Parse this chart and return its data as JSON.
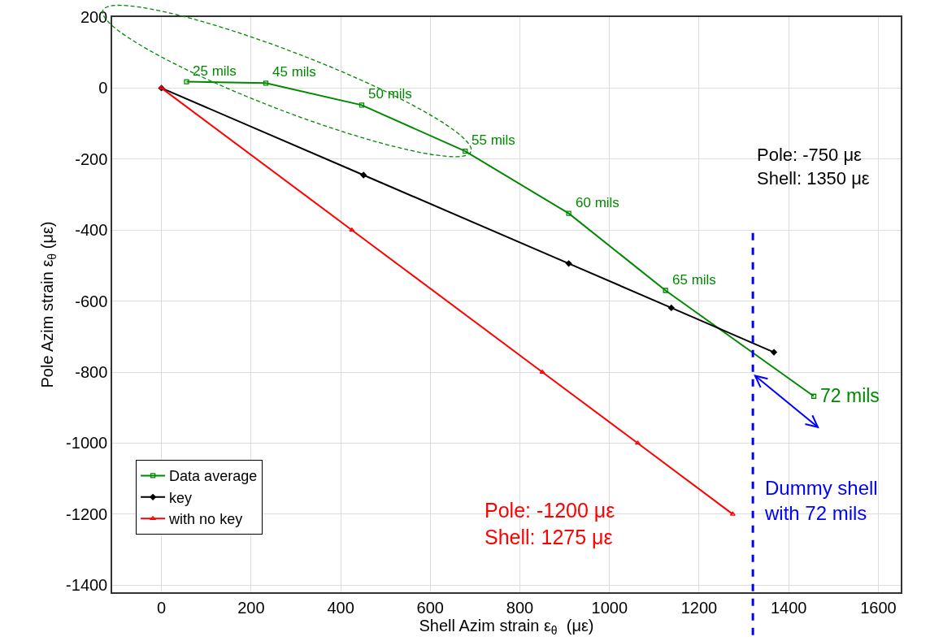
{
  "chart_data": {
    "type": "line",
    "xlabel": "Shell Azim strain ε$_{θ}$  (με)",
    "ylabel": "Pole Azim strain ε$_{θ}$ (με)",
    "xlim": [
      -110,
      1650
    ],
    "xticks": [
      0,
      200,
      400,
      600,
      800,
      1000,
      1200,
      1400,
      1600
    ],
    "ylim": [
      -1420,
      200
    ],
    "yticks": [
      200,
      0,
      -200,
      -400,
      -600,
      -800,
      -1000,
      -1200,
      -1400
    ],
    "grid": true,
    "legend": "bottom left",
    "line_style": "solid",
    "series": [
      {
        "name": "Data average",
        "color": "#008800",
        "marker": "square",
        "x": [
          56,
          233,
          447,
          678,
          909,
          1125,
          1456
        ],
        "values": [
          18,
          14,
          -48,
          -178,
          -353,
          -570,
          -868
        ]
      },
      {
        "name": "key",
        "color": "#000000",
        "marker": "diamond",
        "x": [
          0,
          451,
          909,
          1138,
          1367
        ],
        "values": [
          0,
          -245,
          -494,
          -619,
          -744
        ]
      },
      {
        "name": "with no key",
        "color": "#ff0000",
        "marker": "triangle",
        "x": [
          0,
          425,
          850,
          1063,
          1275
        ],
        "values": [
          0,
          -400,
          -800,
          -1000,
          -1200
        ]
      }
    ],
    "ref_lines": [
      {
        "axis": "x",
        "value": 1320,
        "label": "Dummy shell\nwith 72 mils",
        "color": "#0000ff",
        "line_style": "dashed"
      }
    ],
    "annotations": [
      {
        "text": "25 mils",
        "x": 56,
        "y": 18
      },
      {
        "text": "45 mils",
        "x": 233,
        "y": 14
      },
      {
        "text": "50 mils",
        "x": 447,
        "y": -48
      },
      {
        "text": "55 mils",
        "x": 678,
        "y": -178
      },
      {
        "text": "60 mils",
        "x": 909,
        "y": -353
      },
      {
        "text": "65 mils",
        "x": 1125,
        "y": -570
      },
      {
        "text": "72 mils",
        "x": 1456,
        "y": -868
      },
      "Pole: -750 με\nShell: 1350 με",
      "Pole: -1200 με\nShell: 1275 με"
    ]
  }
}
